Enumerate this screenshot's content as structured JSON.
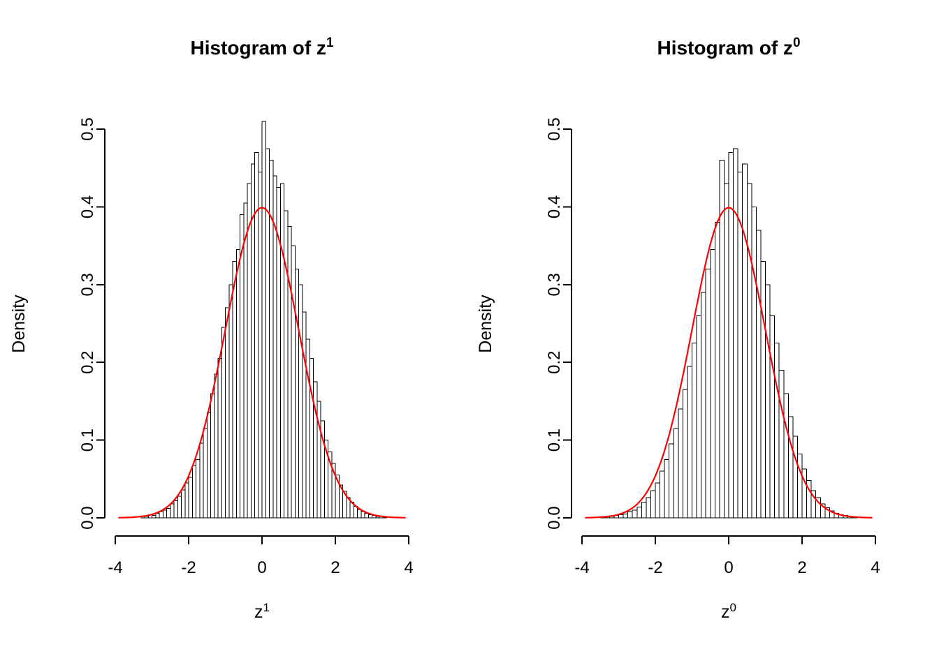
{
  "figure": {
    "background": "#ffffff",
    "text_color": "#000000"
  },
  "chart_data": [
    {
      "type": "histogram",
      "title_base": "Histogram of z",
      "title_sup": "1",
      "xlabel_base": "z",
      "xlabel_sup": "1",
      "ylabel": "Density",
      "xlim": [
        -4,
        4
      ],
      "ylim": [
        0,
        0.5
      ],
      "x_ticks": [
        -4,
        -2,
        0,
        2,
        4
      ],
      "x_tick_labels": [
        "-4",
        "-2",
        "0",
        "2",
        "4"
      ],
      "y_ticks": [
        0,
        0.1,
        0.2,
        0.3,
        0.4,
        0.5
      ],
      "y_tick_labels": [
        "0.0",
        "0.1",
        "0.2",
        "0.3",
        "0.4",
        "0.5"
      ],
      "grid": false,
      "bin_start": -3.3,
      "bin_width": 0.1,
      "bar_fill": "#ffffff",
      "bar_stroke": "#000000",
      "densities": [
        0.002,
        0.002,
        0.004,
        0.003,
        0.006,
        0.008,
        0.01,
        0.012,
        0.018,
        0.022,
        0.028,
        0.036,
        0.045,
        0.052,
        0.068,
        0.075,
        0.096,
        0.115,
        0.135,
        0.16,
        0.185,
        0.205,
        0.245,
        0.27,
        0.3,
        0.33,
        0.345,
        0.39,
        0.405,
        0.43,
        0.455,
        0.47,
        0.445,
        0.51,
        0.475,
        0.46,
        0.44,
        0.425,
        0.43,
        0.395,
        0.375,
        0.35,
        0.32,
        0.3,
        0.265,
        0.23,
        0.205,
        0.175,
        0.15,
        0.125,
        0.1,
        0.085,
        0.07,
        0.055,
        0.042,
        0.034,
        0.026,
        0.02,
        0.015,
        0.011,
        0.008,
        0.006,
        0.004,
        0.003,
        0.002,
        0.002,
        0.001
      ],
      "curve": {
        "distribution": "normal-density",
        "mean": 0,
        "sd": 1,
        "x_range": [
          -3.9,
          3.9
        ],
        "color": "#ff0000"
      }
    },
    {
      "type": "histogram",
      "title_base": "Histogram of z",
      "title_sup": "0",
      "xlabel_base": "z",
      "xlabel_sup": "0",
      "ylabel": "Density",
      "xlim": [
        -4,
        4
      ],
      "ylim": [
        0,
        0.5
      ],
      "x_ticks": [
        -4,
        -2,
        0,
        2,
        4
      ],
      "x_tick_labels": [
        "-4",
        "-2",
        "0",
        "2",
        "4"
      ],
      "y_ticks": [
        0,
        0.1,
        0.2,
        0.3,
        0.4,
        0.5
      ],
      "y_tick_labels": [
        "0.0",
        "0.1",
        "0.2",
        "0.3",
        "0.4",
        "0.5"
      ],
      "grid": false,
      "bin_start": -3.5,
      "bin_width": 0.125,
      "bar_fill": "#ffffff",
      "bar_stroke": "#000000",
      "densities": [
        0.001,
        0.002,
        0.002,
        0.003,
        0.004,
        0.005,
        0.008,
        0.01,
        0.014,
        0.02,
        0.026,
        0.035,
        0.045,
        0.06,
        0.075,
        0.095,
        0.115,
        0.14,
        0.165,
        0.195,
        0.225,
        0.26,
        0.29,
        0.32,
        0.345,
        0.38,
        0.46,
        0.43,
        0.47,
        0.475,
        0.445,
        0.455,
        0.43,
        0.4,
        0.37,
        0.33,
        0.3,
        0.26,
        0.225,
        0.19,
        0.16,
        0.13,
        0.105,
        0.082,
        0.063,
        0.048,
        0.035,
        0.026,
        0.018,
        0.013,
        0.009,
        0.006,
        0.004,
        0.003,
        0.002,
        0.001
      ],
      "curve": {
        "distribution": "normal-density",
        "mean": 0,
        "sd": 1,
        "x_range": [
          -3.9,
          3.9
        ],
        "color": "#ff0000"
      }
    }
  ]
}
